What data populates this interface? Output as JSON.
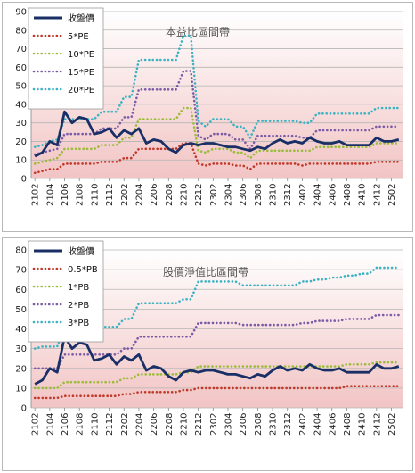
{
  "x_labels": [
    "2102",
    "2104",
    "2106",
    "2108",
    "2110",
    "2112",
    "2202",
    "2204",
    "2206",
    "2208",
    "2210",
    "2212",
    "2302",
    "2304",
    "2306",
    "2308",
    "2310",
    "2312",
    "2402",
    "2404",
    "2406",
    "2408",
    "2410",
    "2412",
    "2502"
  ],
  "colors": {
    "price": "#1a2f66",
    "s1": "#c0392b",
    "s2": "#9bbb3a",
    "s3": "#7b5ba6",
    "s4": "#3bb3c3",
    "plot_bg_top": "#ffffff",
    "plot_bg_bottom": "#f2c4c4",
    "grid": "#b5b5b5"
  },
  "chart_data": [
    {
      "type": "line",
      "title": "本益比區間帶",
      "ylim": [
        0,
        90
      ],
      "yticks": [
        0,
        10,
        20,
        30,
        40,
        50,
        60,
        70,
        80,
        90
      ],
      "x": [
        "2102",
        "2103",
        "2104",
        "2105",
        "2106",
        "2107",
        "2108",
        "2109",
        "2110",
        "2111",
        "2112",
        "2201",
        "2202",
        "2203",
        "2204",
        "2205",
        "2206",
        "2207",
        "2208",
        "2209",
        "2210",
        "2211",
        "2212",
        "2301",
        "2302",
        "2303",
        "2304",
        "2305",
        "2306",
        "2307",
        "2308",
        "2309",
        "2310",
        "2311",
        "2312",
        "2401",
        "2402",
        "2403",
        "2404",
        "2405",
        "2406",
        "2407",
        "2408",
        "2409",
        "2410",
        "2411",
        "2412",
        "2501",
        "2502",
        "2503"
      ],
      "series": [
        {
          "name": "收盤價",
          "values": [
            12,
            14,
            20,
            18,
            36,
            30,
            33,
            32,
            24,
            25,
            27,
            22,
            26,
            24,
            27,
            19,
            21,
            20,
            16,
            14,
            18,
            19,
            18,
            19,
            19,
            18,
            17,
            17,
            16,
            15,
            17,
            16,
            19,
            21,
            19,
            20,
            19,
            22,
            20,
            19,
            19,
            20,
            18,
            18,
            18,
            18,
            22,
            20,
            20,
            21
          ]
        },
        {
          "name": "5*PE",
          "values": [
            3,
            4,
            5,
            5,
            8,
            8,
            8,
            8,
            8,
            9,
            9,
            9,
            11,
            11,
            16,
            16,
            16,
            16,
            16,
            16,
            19,
            19,
            8,
            7,
            8,
            8,
            8,
            7,
            7,
            5,
            8,
            8,
            8,
            8,
            8,
            8,
            7,
            8,
            8,
            8,
            8,
            8,
            8,
            8,
            8,
            8,
            9,
            9,
            9,
            9
          ]
        },
        {
          "name": "10*PE",
          "values": [
            8,
            9,
            10,
            11,
            16,
            16,
            16,
            16,
            16,
            18,
            18,
            18,
            22,
            22,
            32,
            32,
            32,
            32,
            32,
            32,
            38,
            38,
            15,
            14,
            16,
            16,
            16,
            14,
            14,
            11,
            15,
            15,
            15,
            15,
            15,
            15,
            15,
            15,
            17,
            17,
            17,
            17,
            17,
            17,
            17,
            17,
            19,
            19,
            19,
            19
          ]
        },
        {
          "name": "15*PE",
          "values": [
            13,
            14,
            15,
            16,
            24,
            24,
            24,
            24,
            24,
            27,
            27,
            27,
            33,
            33,
            48,
            48,
            48,
            48,
            48,
            48,
            58,
            58,
            23,
            21,
            24,
            24,
            24,
            21,
            21,
            16,
            23,
            23,
            23,
            23,
            23,
            23,
            22,
            22,
            26,
            26,
            26,
            26,
            26,
            26,
            26,
            26,
            28,
            28,
            28,
            28
          ]
        },
        {
          "name": "20*PE",
          "values": [
            17,
            18,
            20,
            21,
            32,
            32,
            32,
            32,
            32,
            36,
            36,
            36,
            44,
            44,
            64,
            64,
            64,
            64,
            64,
            64,
            77,
            77,
            31,
            28,
            32,
            32,
            32,
            28,
            28,
            22,
            31,
            31,
            31,
            31,
            31,
            31,
            30,
            30,
            35,
            35,
            35,
            35,
            35,
            35,
            35,
            35,
            38,
            38,
            38,
            38
          ]
        }
      ]
    },
    {
      "type": "line",
      "title": "股價淨值比區間帶",
      "ylim": [
        0,
        80
      ],
      "yticks": [
        0,
        10,
        20,
        30,
        40,
        50,
        60,
        70,
        80
      ],
      "x": [
        "2102",
        "2103",
        "2104",
        "2105",
        "2106",
        "2107",
        "2108",
        "2109",
        "2110",
        "2111",
        "2112",
        "2201",
        "2202",
        "2203",
        "2204",
        "2205",
        "2206",
        "2207",
        "2208",
        "2209",
        "2210",
        "2211",
        "2212",
        "2301",
        "2302",
        "2303",
        "2304",
        "2305",
        "2306",
        "2307",
        "2308",
        "2309",
        "2310",
        "2311",
        "2312",
        "2401",
        "2402",
        "2403",
        "2404",
        "2405",
        "2406",
        "2407",
        "2408",
        "2409",
        "2410",
        "2411",
        "2412",
        "2501",
        "2502",
        "2503"
      ],
      "series": [
        {
          "name": "收盤價",
          "values": [
            12,
            14,
            20,
            18,
            36,
            30,
            33,
            32,
            24,
            25,
            27,
            22,
            26,
            24,
            27,
            19,
            21,
            20,
            16,
            14,
            18,
            19,
            18,
            19,
            19,
            18,
            17,
            17,
            16,
            15,
            17,
            16,
            19,
            21,
            19,
            20,
            19,
            22,
            20,
            19,
            19,
            20,
            18,
            18,
            18,
            18,
            22,
            20,
            20,
            21
          ]
        },
        {
          "name": "0.5*PB",
          "values": [
            5,
            5,
            5,
            5,
            6,
            6,
            6,
            6,
            6,
            6,
            6,
            6,
            7,
            7,
            8,
            8,
            8,
            8,
            8,
            8,
            9,
            9,
            10,
            10,
            10,
            10,
            10,
            10,
            10,
            10,
            10,
            10,
            10,
            10,
            10,
            10,
            10,
            10,
            10,
            10,
            10,
            10,
            11,
            11,
            11,
            11,
            11,
            11,
            11,
            11
          ]
        },
        {
          "name": "1*PB",
          "values": [
            10,
            10,
            10,
            10,
            13,
            13,
            13,
            13,
            13,
            13,
            13,
            13,
            15,
            15,
            17,
            17,
            17,
            17,
            17,
            17,
            18,
            18,
            21,
            21,
            21,
            21,
            21,
            21,
            21,
            21,
            21,
            21,
            21,
            21,
            21,
            21,
            21,
            21,
            21,
            21,
            21,
            21,
            22,
            22,
            22,
            22,
            23,
            23,
            23,
            23
          ]
        },
        {
          "name": "2*PB",
          "values": [
            20,
            20,
            20,
            20,
            27,
            27,
            27,
            27,
            27,
            27,
            27,
            27,
            30,
            30,
            36,
            36,
            36,
            36,
            36,
            36,
            36,
            36,
            43,
            43,
            43,
            43,
            43,
            43,
            42,
            42,
            42,
            42,
            42,
            42,
            42,
            42,
            43,
            43,
            44,
            44,
            44,
            44,
            45,
            45,
            45,
            45,
            47,
            47,
            47,
            47
          ]
        },
        {
          "name": "3*PB",
          "values": [
            30,
            31,
            31,
            31,
            41,
            41,
            41,
            41,
            41,
            41,
            41,
            41,
            45,
            45,
            53,
            53,
            53,
            53,
            53,
            53,
            55,
            55,
            64,
            64,
            64,
            64,
            64,
            64,
            62,
            62,
            62,
            62,
            62,
            62,
            62,
            62,
            64,
            64,
            65,
            65,
            66,
            66,
            67,
            67,
            68,
            68,
            71,
            71,
            71,
            71
          ]
        }
      ]
    }
  ]
}
